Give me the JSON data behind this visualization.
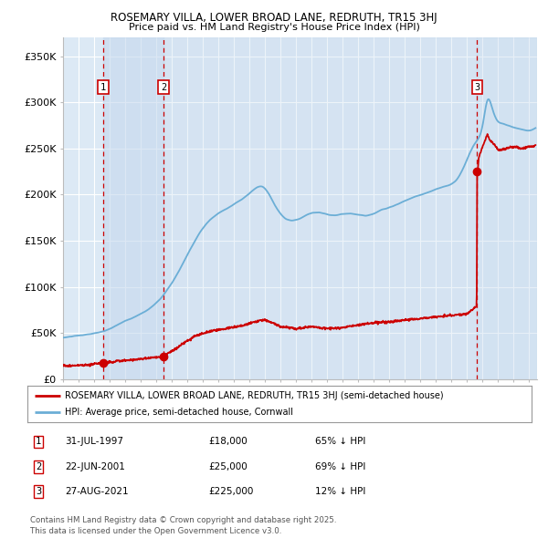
{
  "title1": "ROSEMARY VILLA, LOWER BROAD LANE, REDRUTH, TR15 3HJ",
  "title2": "Price paid vs. HM Land Registry's House Price Index (HPI)",
  "ylim": [
    0,
    370000
  ],
  "xlim_start": 1995.0,
  "xlim_end": 2025.5,
  "background_color": "#ffffff",
  "plot_bg_color": "#dce9f5",
  "grid_color": "#ffffff",
  "hpi_color": "#6baed6",
  "price_color": "#cc0000",
  "shade_color": "#c5d8ed",
  "transactions": [
    {
      "label": "1",
      "date_num": 1997.58,
      "price": 18000,
      "year_str": "31-JUL-1997",
      "price_str": "£18,000",
      "pct_str": "65% ↓ HPI"
    },
    {
      "label": "2",
      "date_num": 2001.47,
      "price": 25000,
      "year_str": "22-JUN-2001",
      "price_str": "£25,000",
      "pct_str": "69% ↓ HPI"
    },
    {
      "label": "3",
      "date_num": 2021.65,
      "price": 225000,
      "year_str": "27-AUG-2021",
      "price_str": "£225,000",
      "pct_str": "12% ↓ HPI"
    }
  ],
  "legend_line1": "ROSEMARY VILLA, LOWER BROAD LANE, REDRUTH, TR15 3HJ (semi-detached house)",
  "legend_line2": "HPI: Average price, semi-detached house, Cornwall",
  "footnote": "Contains HM Land Registry data © Crown copyright and database right 2025.\nThis data is licensed under the Open Government Licence v3.0.",
  "yticks": [
    0,
    50000,
    100000,
    150000,
    200000,
    250000,
    300000,
    350000
  ],
  "ytick_labels": [
    "£0",
    "£50K",
    "£100K",
    "£150K",
    "£200K",
    "£250K",
    "£300K",
    "£350K"
  ]
}
